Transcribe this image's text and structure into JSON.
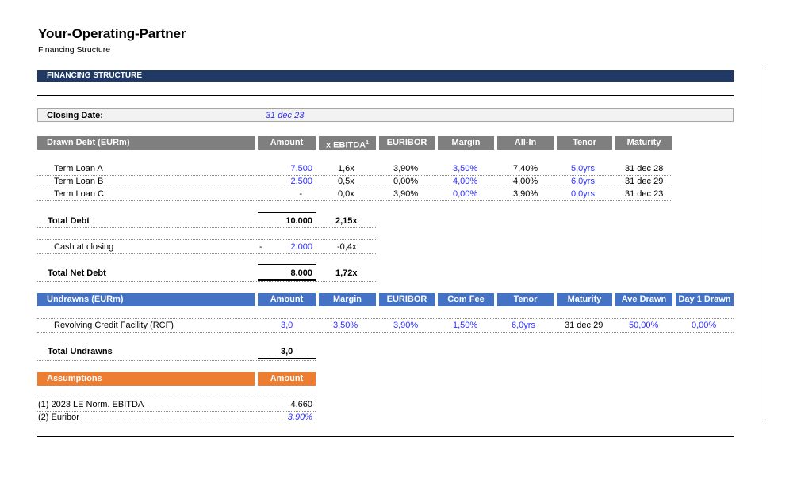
{
  "header": {
    "title": "Your-Operating-Partner",
    "subtitle": "Financing Structure"
  },
  "banner": "FINANCING STRUCTURE",
  "closing": {
    "label": "Closing Date:",
    "value": "31 dec 23"
  },
  "drawn": {
    "headers": [
      "Drawn Debt (EURm)",
      "Amount",
      "x EBITDA",
      "EURIBOR",
      "Margin",
      "All-In",
      "Tenor",
      "Maturity"
    ],
    "superscript": "1",
    "rows": [
      {
        "name": "Term Loan A",
        "amount": "7.500",
        "ebitda": "1,6x",
        "euribor": "3,90%",
        "margin": "3,50%",
        "allin": "7,40%",
        "tenor": "5,0yrs",
        "maturity": "31 dec 28"
      },
      {
        "name": "Term Loan B",
        "amount": "2.500",
        "ebitda": "0,5x",
        "euribor": "0,00%",
        "margin": "4,00%",
        "allin": "4,00%",
        "tenor": "6,0yrs",
        "maturity": "31 dec 29"
      },
      {
        "name": "Term Loan C",
        "amount": "-",
        "ebitda": "0,0x",
        "euribor": "3,90%",
        "margin": "0,00%",
        "allin": "3,90%",
        "tenor": "0,0yrs",
        "maturity": "31 dec 23"
      }
    ],
    "total_debt": {
      "label": "Total Debt",
      "amount": "10.000",
      "ebitda": "2,15x"
    },
    "cash": {
      "label": "Cash at closing",
      "sign": "-",
      "amount": "2.000",
      "ebitda": "-0,4x"
    },
    "net_debt": {
      "label": "Total Net Debt",
      "amount": "8.000",
      "ebitda": "1,72x"
    }
  },
  "undrawn": {
    "headers": [
      "Undrawns (EURm)",
      "Amount",
      "Margin",
      "EURIBOR",
      "Com Fee",
      "Tenor",
      "Maturity",
      "Ave Drawn",
      "Day 1 Drawn"
    ],
    "row": {
      "name": "Revolving Credit Facility (RCF)",
      "amount": "3,0",
      "margin": "3,50%",
      "euribor": "3,90%",
      "comfee": "1,50%",
      "tenor": "6,0yrs",
      "maturity": "31 dec 29",
      "ave_drawn": "50,00%",
      "day1": "0,00%"
    },
    "total": {
      "label": "Total Undrawns",
      "amount": "3,0"
    }
  },
  "assumptions": {
    "headers": [
      "Assumptions",
      "Amount"
    ],
    "rows": [
      {
        "label": "(1) 2023 LE Norm. EBITDA",
        "value": "4.660"
      },
      {
        "label": "(2) Euribor",
        "value": "3,90%"
      }
    ]
  }
}
